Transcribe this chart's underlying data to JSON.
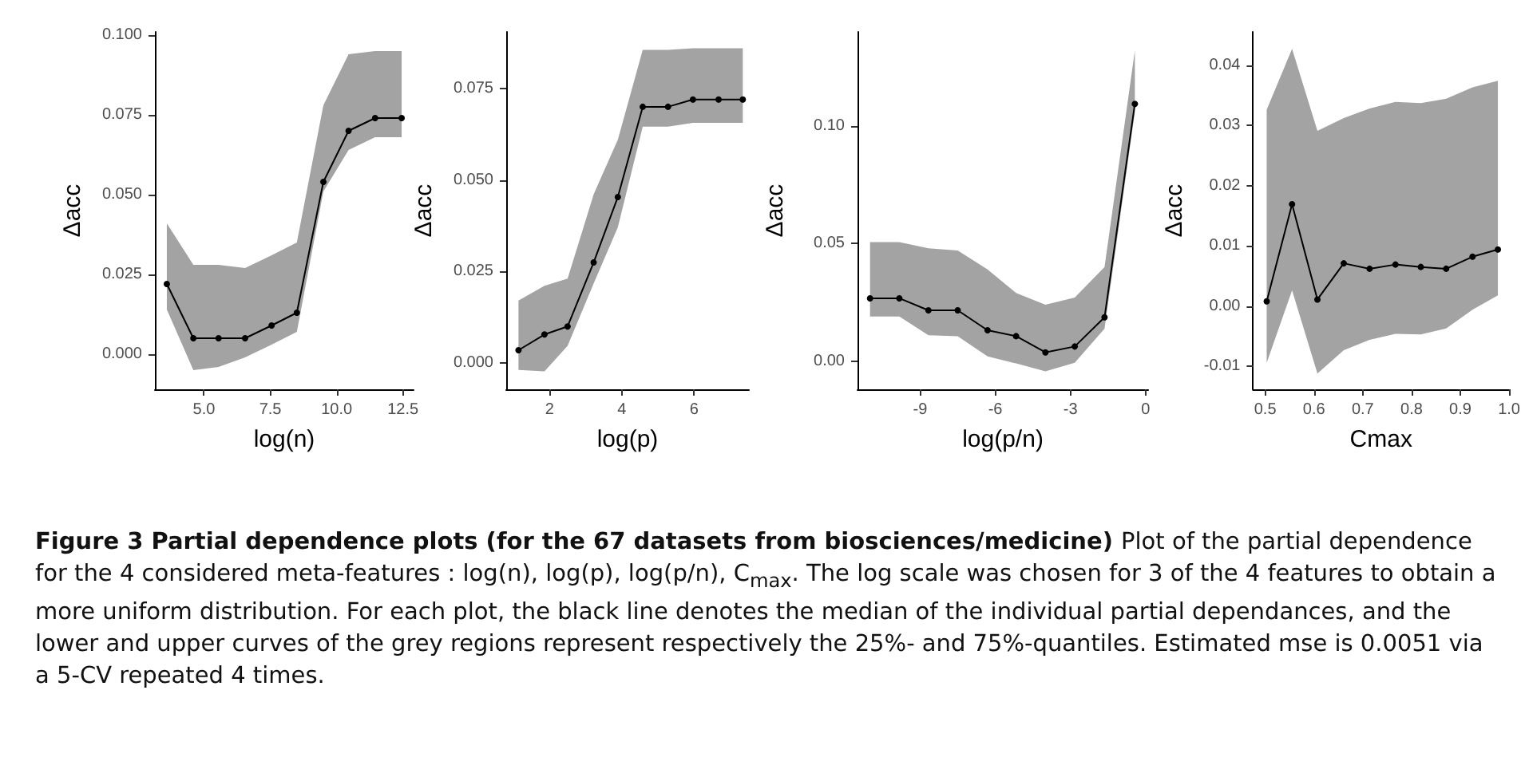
{
  "chart_data": [
    {
      "type": "line",
      "xlabel": "log(n)",
      "ylabel": "Δacc",
      "marker": "circle",
      "grid": false,
      "x": [
        3.6,
        4.6,
        5.55,
        6.55,
        7.55,
        8.5,
        9.5,
        10.45,
        11.45,
        12.45
      ],
      "series": [
        {
          "color": "#000000",
          "values": [
            0.022,
            0.005,
            0.005,
            0.005,
            0.009,
            0.013,
            0.054,
            0.07,
            0.074,
            0.074
          ],
          "lower": [
            0.014,
            -0.005,
            -0.004,
            -0.001,
            0.003,
            0.007,
            0.051,
            0.064,
            0.068,
            0.068
          ],
          "upper": [
            0.041,
            0.028,
            0.028,
            0.027,
            0.031,
            0.035,
            0.078,
            0.094,
            0.095,
            0.095
          ]
        }
      ],
      "xlim": [
        3.15,
        12.9
      ],
      "xticks": [
        {
          "value": 5,
          "label": "5.0"
        },
        {
          "value": 7.5,
          "label": "7.5"
        },
        {
          "value": 10,
          "label": "10.0"
        },
        {
          "value": 12.5,
          "label": "12.5"
        }
      ],
      "ylim": [
        -0.011,
        0.101
      ],
      "yticks": [
        {
          "value": 0,
          "label": "0.000"
        },
        {
          "value": 0.025,
          "label": "0.025"
        },
        {
          "value": 0.05,
          "label": "0.050"
        },
        {
          "value": 0.075,
          "label": "0.075"
        },
        {
          "value": 0.1,
          "label": "0.100"
        }
      ],
      "annotations": [
        "Figure 3 Partial dependence plots (for the 67 datasets from biosciences/medicine)",
        "Plot of the partial dependence for the 4 considered meta-features : log(n), log(p), log(p/n), C$_{max}$. The log scale was chosen for 3 of the 4 features to obtain a more uniform distribution. For each plot, the black line denotes the median of the individual partial dependances, and the lower and upper curves of the grey regions represent respectively the 25%- and 75%-quantiles. Estimated mse is 0.0051 via a 5-CV repeated 4 times."
      ]
    },
    {
      "type": "line",
      "xlabel": "log(p)",
      "ylabel": "Δacc",
      "marker": "circle",
      "grid": false,
      "x": [
        1.14,
        1.86,
        2.5,
        3.22,
        3.89,
        4.58,
        5.28,
        5.97,
        6.68,
        7.35
      ],
      "series": [
        {
          "color": "#000000",
          "values": [
            0.0034,
            0.0077,
            0.0099,
            0.0274,
            0.0453,
            0.07,
            0.07,
            0.072,
            0.072,
            0.072
          ],
          "lower": [
            -0.002,
            -0.0024,
            0.0046,
            0.0216,
            0.037,
            0.0646,
            0.0646,
            0.0656,
            0.0656,
            0.0656
          ],
          "upper": [
            0.017,
            0.021,
            0.023,
            0.046,
            0.061,
            0.0856,
            0.0856,
            0.086,
            0.086,
            0.086
          ]
        }
      ],
      "xlim": [
        0.8,
        7.52
      ],
      "xticks": [
        2,
        4,
        6
      ],
      "ylim": [
        -0.0073,
        0.0905
      ],
      "yticks": [
        {
          "value": 0,
          "label": "0.000"
        },
        {
          "value": 0.025,
          "label": "0.025"
        },
        {
          "value": 0.05,
          "label": "0.050"
        },
        {
          "value": 0.075,
          "label": "0.075"
        }
      ]
    },
    {
      "type": "line",
      "xlabel": "log(p/n)",
      "ylabel": "Δacc",
      "marker": "circle",
      "grid": false,
      "x": [
        -11,
        -9.83,
        -8.67,
        -7.5,
        -6.31,
        -5.17,
        -4.0,
        -2.83,
        -1.64,
        -0.43
      ],
      "series": [
        {
          "color": "#000000",
          "values": [
            0.0267,
            0.0267,
            0.0216,
            0.0216,
            0.0131,
            0.0106,
            0.0037,
            0.0062,
            0.0186,
            0.1094
          ],
          "lower": [
            0.019,
            0.019,
            0.011,
            0.0106,
            0.002,
            -0.001,
            -0.0044,
            -0.0007,
            0.0138,
            0.106
          ],
          "upper": [
            0.0506,
            0.0506,
            0.048,
            0.047,
            0.039,
            0.029,
            0.024,
            0.027,
            0.04,
            0.132
          ]
        }
      ],
      "xlim": [
        -11.5,
        0.1
      ],
      "xticks": [
        -9,
        -6,
        -3,
        0
      ],
      "ylim": [
        -0.012,
        0.14
      ],
      "yticks": [
        {
          "value": 0,
          "label": "0.00"
        },
        {
          "value": 0.05,
          "label": "0.05"
        },
        {
          "value": 0.1,
          "label": "0.10"
        }
      ]
    },
    {
      "type": "line",
      "xlabel": "Cmax",
      "ylabel": "Δacc",
      "marker": "circle",
      "grid": false,
      "x": [
        0.503,
        0.555,
        0.607,
        0.661,
        0.714,
        0.767,
        0.819,
        0.871,
        0.925,
        0.977
      ],
      "series": [
        {
          "color": "#000000",
          "values": [
            0.0008,
            0.0169,
            0.0011,
            0.0071,
            0.0062,
            0.0069,
            0.0065,
            0.0062,
            0.0082,
            0.0094
          ],
          "lower": [
            -0.0094,
            0.0026,
            -0.0112,
            -0.0073,
            -0.0056,
            -0.0046,
            -0.0047,
            -0.0037,
            -0.0006,
            0.0018
          ],
          "upper": [
            0.0326,
            0.0427,
            0.0291,
            0.0312,
            0.0328,
            0.0339,
            0.0337,
            0.0344,
            0.0363,
            0.0374
          ]
        }
      ],
      "xlim": [
        0.475,
        1.0
      ],
      "xticks": [
        0.5,
        0.6,
        0.7,
        0.8,
        0.9,
        {
          "value": 1,
          "label": "1.0"
        }
      ],
      "ylim": [
        -0.0138,
        0.0455
      ],
      "yticks": [
        {
          "value": -0.01,
          "label": "-0.01"
        },
        {
          "value": 0,
          "label": "0.00"
        },
        {
          "value": 0.01,
          "label": "0.01"
        },
        {
          "value": 0.02,
          "label": "0.02"
        },
        {
          "value": 0.03,
          "label": "0.03"
        },
        {
          "value": 0.04,
          "label": "0.04"
        }
      ]
    }
  ]
}
